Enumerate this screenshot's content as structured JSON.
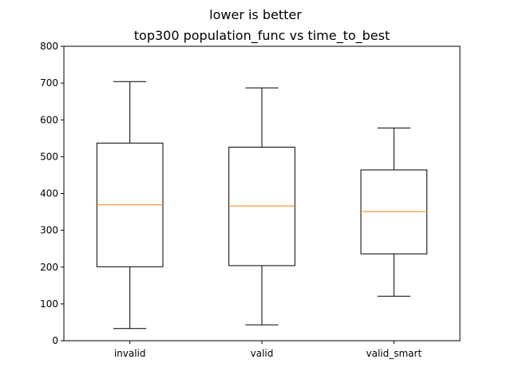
{
  "chart_data": {
    "type": "box",
    "suptitle": "lower is better",
    "title": "top300 population_func vs time_to_best",
    "xlabel": "",
    "ylabel": "",
    "ylim": [
      0,
      800
    ],
    "yticks": [
      0,
      100,
      200,
      300,
      400,
      500,
      600,
      700,
      800
    ],
    "grid": false,
    "colors": {
      "box": "#000000",
      "median": "#ff7f0e"
    },
    "categories": [
      "invalid",
      "valid",
      "valid_smart"
    ],
    "boxes": [
      {
        "label": "invalid",
        "whisker_low": 33,
        "q1": 201,
        "median": 369,
        "q3": 537,
        "whisker_high": 704
      },
      {
        "label": "valid",
        "whisker_low": 43,
        "q1": 204,
        "median": 366,
        "q3": 526,
        "whisker_high": 687
      },
      {
        "label": "valid_smart",
        "whisker_low": 121,
        "q1": 236,
        "median": 351,
        "q3": 464,
        "whisker_high": 578
      }
    ]
  }
}
